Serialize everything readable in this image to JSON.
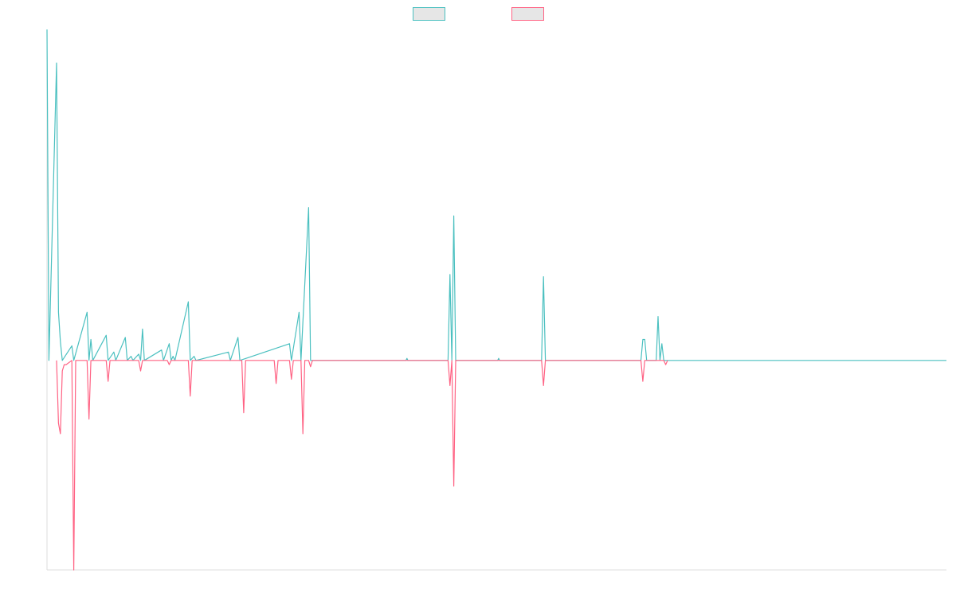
{
  "colors": {
    "series_a": "#4bc0c0",
    "series_b": "#ff6384",
    "legend_fill": "#e6e6e6",
    "axis": "#dddddd",
    "background": "#ffffff"
  },
  "legend": {
    "position": "top-center",
    "items": [
      {
        "label": "",
        "color": "#4bc0c0"
      },
      {
        "label": "",
        "color": "#ff6384"
      }
    ]
  },
  "chart_data": {
    "type": "line",
    "title": "",
    "xlabel": "",
    "ylabel": "",
    "grid": false,
    "ylim": [
      -100,
      158
    ],
    "xlim": [
      0,
      471
    ],
    "series": [
      {
        "label": "",
        "color": "#4bc0c0",
        "points": [
          [
            0,
            158
          ],
          [
            1,
            0
          ],
          [
            5,
            142
          ],
          [
            6,
            23
          ],
          [
            7,
            9
          ],
          [
            8,
            0
          ],
          [
            13,
            7
          ],
          [
            14,
            0
          ],
          [
            21,
            23
          ],
          [
            22,
            0
          ],
          [
            23,
            10
          ],
          [
            24,
            0
          ],
          [
            31,
            12
          ],
          [
            32,
            0
          ],
          [
            35,
            4
          ],
          [
            36,
            0
          ],
          [
            41,
            11
          ],
          [
            42,
            0
          ],
          [
            44,
            2
          ],
          [
            45,
            0
          ],
          [
            48,
            3
          ],
          [
            49,
            0
          ],
          [
            50,
            15
          ],
          [
            51,
            0
          ],
          [
            60,
            5
          ],
          [
            61,
            0
          ],
          [
            64,
            8
          ],
          [
            65,
            0
          ],
          [
            66,
            2
          ],
          [
            67,
            0
          ],
          [
            74,
            28
          ],
          [
            75,
            0
          ],
          [
            77,
            2
          ],
          [
            78,
            0
          ],
          [
            95,
            4
          ],
          [
            96,
            0
          ],
          [
            100,
            11
          ],
          [
            101,
            0
          ],
          [
            127,
            8
          ],
          [
            128,
            0
          ],
          [
            132,
            23
          ],
          [
            133,
            0
          ],
          [
            137,
            73
          ],
          [
            138,
            0
          ],
          [
            188,
            0
          ],
          [
            188.5,
            1
          ],
          [
            189,
            0
          ],
          [
            210,
            0
          ],
          [
            211,
            41
          ],
          [
            212,
            0
          ],
          [
            213,
            69
          ],
          [
            214,
            0
          ],
          [
            236,
            0
          ],
          [
            236.5,
            1
          ],
          [
            237,
            0
          ],
          [
            259,
            0
          ],
          [
            260,
            40
          ],
          [
            261,
            0
          ],
          [
            311,
            0
          ],
          [
            312,
            10
          ],
          [
            313,
            10
          ],
          [
            314,
            0
          ],
          [
            319,
            0
          ],
          [
            320,
            21
          ],
          [
            321,
            0
          ],
          [
            322,
            8
          ],
          [
            323,
            0
          ],
          [
            471,
            0
          ]
        ]
      },
      {
        "label": "",
        "color": "#ff6384",
        "points": [
          [
            5,
            0
          ],
          [
            6,
            -30
          ],
          [
            7,
            -35
          ],
          [
            8,
            -5
          ],
          [
            9,
            -2
          ],
          [
            10,
            -2
          ],
          [
            13,
            0
          ],
          [
            14,
            -100
          ],
          [
            15,
            0
          ],
          [
            21,
            0
          ],
          [
            22,
            -28
          ],
          [
            23,
            0
          ],
          [
            31,
            0
          ],
          [
            32,
            -10
          ],
          [
            33,
            0
          ],
          [
            48,
            0
          ],
          [
            49,
            -5
          ],
          [
            50,
            0
          ],
          [
            63,
            0
          ],
          [
            64,
            -2
          ],
          [
            65,
            0
          ],
          [
            74,
            0
          ],
          [
            75,
            -17
          ],
          [
            76,
            0
          ],
          [
            102,
            0
          ],
          [
            103,
            -25
          ],
          [
            104,
            0
          ],
          [
            119,
            0
          ],
          [
            120,
            -11
          ],
          [
            121,
            0
          ],
          [
            127,
            0
          ],
          [
            128,
            -9
          ],
          [
            129,
            0
          ],
          [
            133,
            0
          ],
          [
            134,
            -35
          ],
          [
            135,
            0
          ],
          [
            137,
            0
          ],
          [
            138,
            -3
          ],
          [
            139,
            0
          ],
          [
            210,
            0
          ],
          [
            211,
            -12
          ],
          [
            212,
            0
          ],
          [
            213,
            -60
          ],
          [
            214,
            0
          ],
          [
            259,
            0
          ],
          [
            260,
            -12
          ],
          [
            261,
            0
          ],
          [
            311,
            0
          ],
          [
            312,
            -10
          ],
          [
            313,
            0
          ],
          [
            323,
            0
          ],
          [
            324,
            -2
          ],
          [
            325,
            0
          ]
        ]
      }
    ]
  }
}
